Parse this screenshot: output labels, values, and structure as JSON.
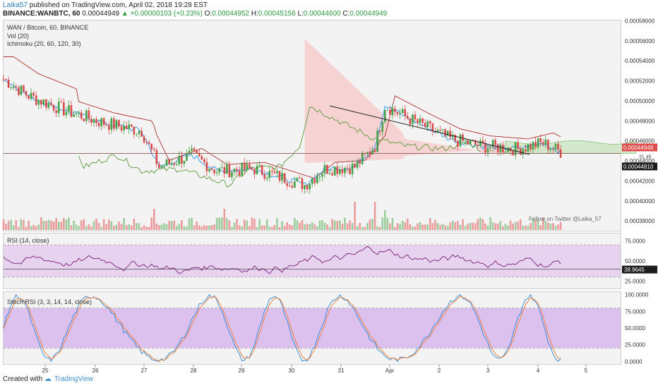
{
  "header": {
    "author": "Laika57",
    "published": " published on TradingView.com, April 02, 2018 19:28 EST",
    "symbol": "BINANCE:WANBTC, 60",
    "last": "0.00044949",
    "change": "▲ +0.00000103 (+0.23%)",
    "o_label": "O:",
    "o": "0.00044952",
    "h_label": "H:",
    "h": "0.00045156",
    "l_label": "L:",
    "l": "0.00044600",
    "c_label": "C:",
    "c": "0.00044949"
  },
  "labels": {
    "pane_title": "WAN / Bitcoin, 60, BINANCE",
    "vol": "Vol (20)",
    "ichimoku": "Ichimoku (20, 60, 120, 30)",
    "rsi": "RSI (14, close)",
    "stoch": "Stoch RSI (3, 3, 14, 14, close)",
    "twitter": "Follow on Twitter @Laika_57"
  },
  "footer": {
    "created": "Created with",
    "brand": "TradingView"
  },
  "colors": {
    "up": "#43a047",
    "down": "#d84a4a",
    "tenkan": "#2196f3",
    "kijun": "#b03030",
    "chikou": "#5a9a3a",
    "vol_up": "#9ccc9c",
    "vol_down": "#eb9b9b",
    "rsi_line": "#7a1e7a",
    "rsi_band": "#e7d3ef",
    "stoch_k": "#2d86d8",
    "stoch_d": "#f0772b",
    "stoch_band": "#dcc0ee",
    "price_marker": "#e24b4b"
  },
  "chart_data": {
    "type": "candlestick",
    "x_ticks": [
      "25",
      "26",
      "27",
      "28",
      "29",
      "30",
      "31",
      "Apr",
      "2",
      "3",
      "4",
      "5"
    ],
    "y_ticks": [
      "0.00058000",
      "0.00056000",
      "0.00054000",
      "0.00052000",
      "0.00050000",
      "0.00048000",
      "0.00046000",
      "0.00044000",
      "0.00042000",
      "0.00040000",
      "0.00038000"
    ],
    "y_range": [
      0.000371,
      0.000581
    ],
    "price_label": "0.00044949",
    "price_label_2": "0.00044810",
    "overlap_label": "31.45",
    "trendline": {
      "from": [
        "31",
        0.000495
      ],
      "to": [
        "2",
        0.0004545
      ]
    },
    "horizontal_line": 0.0004475,
    "rsi": {
      "ticks": [
        "75.0000",
        "50.0000",
        "25.0000"
      ],
      "range": [
        15,
        85
      ],
      "bands": [
        30,
        70
      ],
      "value_label": "38.9645"
    },
    "stoch_rsi": {
      "ticks": [
        "100.0000",
        "75.0000",
        "50.0000",
        "25.0000",
        "0.0000"
      ],
      "range": [
        -5,
        105
      ],
      "bands": [
        20,
        80
      ]
    }
  }
}
